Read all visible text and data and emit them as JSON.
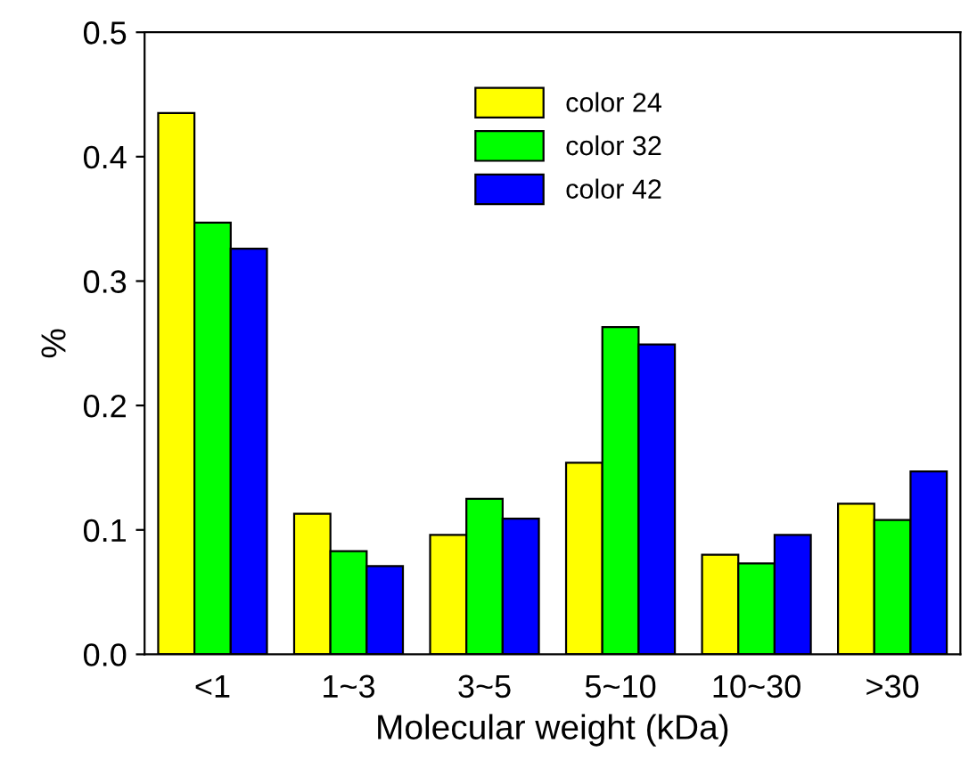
{
  "chart_data": {
    "type": "bar",
    "xlabel": "Molecular weight (kDa)",
    "ylabel": "%",
    "categories": [
      "<1",
      "1~3",
      "3~5",
      "5~10",
      "10~30",
      ">30"
    ],
    "series": [
      {
        "name": "color 24",
        "color": "#ffff00",
        "values": [
          0.435,
          0.113,
          0.096,
          0.154,
          0.08,
          0.121
        ]
      },
      {
        "name": "color 32",
        "color": "#00ff00",
        "values": [
          0.347,
          0.083,
          0.125,
          0.263,
          0.073,
          0.108
        ]
      },
      {
        "name": "color 42",
        "color": "#0000ff",
        "values": [
          0.326,
          0.071,
          0.109,
          0.249,
          0.096,
          0.147
        ]
      }
    ],
    "ylim": [
      0,
      0.5
    ],
    "yticks": [
      {
        "value": 0,
        "label": "0.0"
      },
      0.1,
      0.2,
      0.3,
      0.4,
      0.5
    ],
    "grid": false,
    "legend": "top"
  }
}
